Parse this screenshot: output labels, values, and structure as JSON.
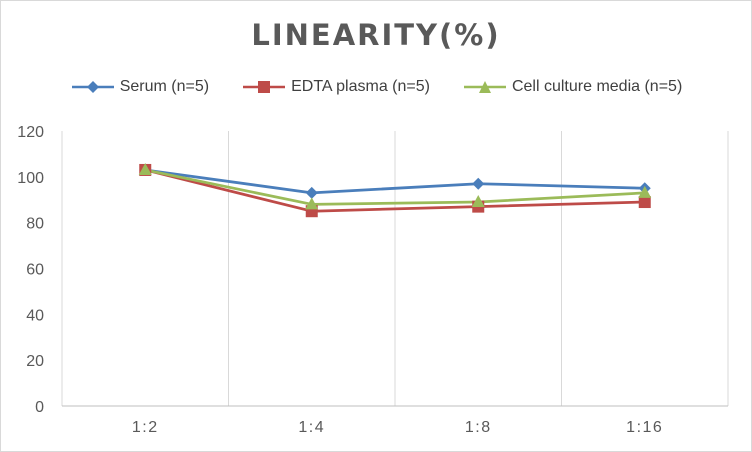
{
  "chart_data": {
    "type": "line",
    "title": "LINEARITY(%)",
    "categories": [
      "1:2",
      "1:4",
      "1:8",
      "1:16"
    ],
    "series": [
      {
        "name": "Serum (n=5)",
        "values": [
          103,
          93,
          97,
          95
        ],
        "color": "#4a7ebb",
        "marker": "diamond"
      },
      {
        "name": "EDTA plasma (n=5)",
        "values": [
          103,
          85,
          87,
          89
        ],
        "color": "#be4b48",
        "marker": "square"
      },
      {
        "name": "Cell culture media (n=5)",
        "values": [
          103,
          88,
          89,
          93
        ],
        "color": "#9bbb59",
        "marker": "triangle"
      }
    ],
    "ylim": [
      0,
      120
    ],
    "yticks": [
      "0",
      "20",
      "40",
      "60",
      "80",
      "100",
      "120"
    ],
    "xlabel": "",
    "ylabel": "",
    "grid": "vertical category lines",
    "legend_position": "top"
  }
}
